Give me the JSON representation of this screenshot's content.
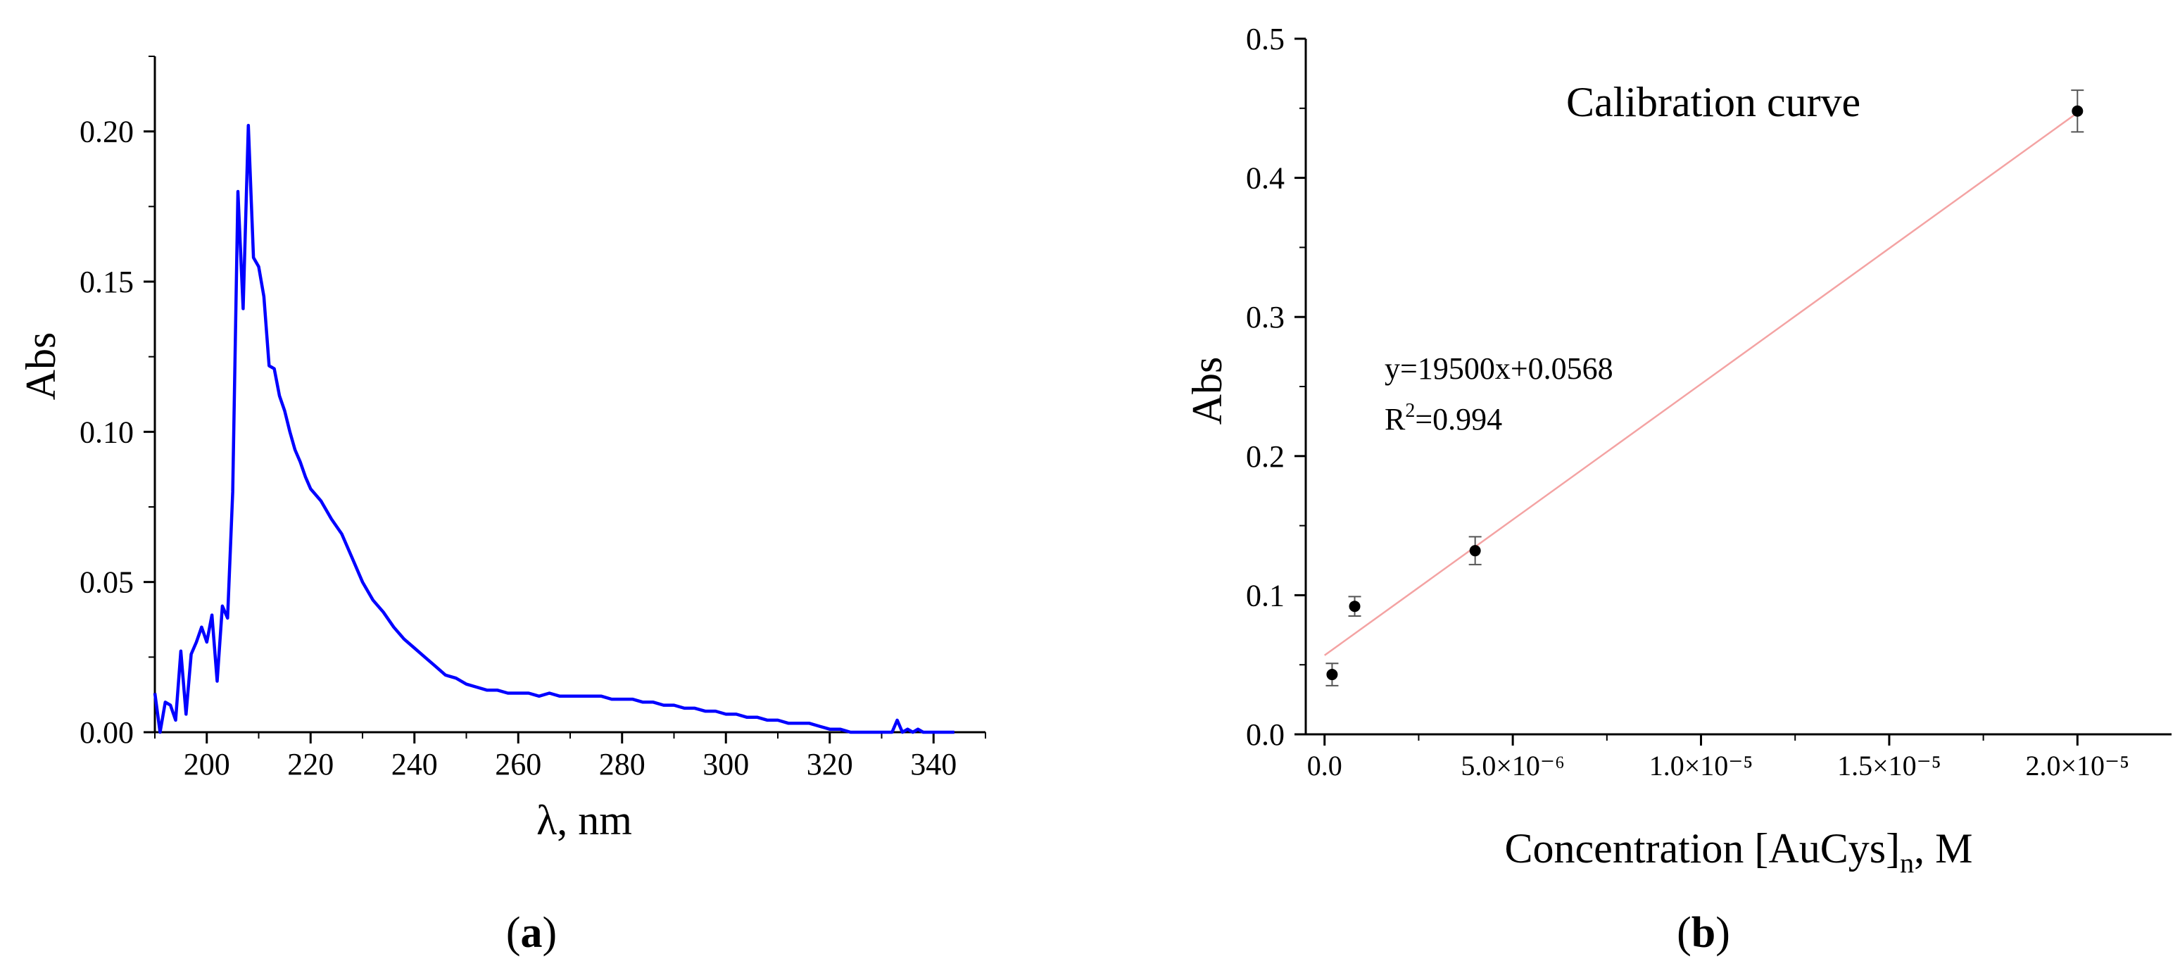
{
  "panels": [
    {
      "label_open": "(",
      "label_letter": "a",
      "label_close": ")"
    },
    {
      "label_open": "(",
      "label_letter": "b",
      "label_close": ")"
    }
  ],
  "chart_data": [
    {
      "type": "line",
      "title": "",
      "xlabel": "λ, nm",
      "ylabel": "Abs",
      "xlim": [
        190,
        350
      ],
      "ylim": [
        0,
        0.225
      ],
      "xticks": [
        200,
        220,
        240,
        260,
        280,
        300,
        320,
        340
      ],
      "xtick_labels": [
        "200",
        "220",
        "240",
        "260",
        "280",
        "300",
        "320",
        "340"
      ],
      "yticks": [
        0,
        0.05,
        0.1,
        0.15,
        0.2
      ],
      "ytick_labels": [
        "0.00",
        "0.05",
        "0.10",
        "0.15",
        "0.20"
      ],
      "grid": false,
      "series": [
        {
          "color": "#0000ff",
          "x": [
            190,
            191,
            192,
            193,
            194,
            195,
            196,
            197,
            198,
            199,
            200,
            201,
            202,
            203,
            204,
            205,
            206,
            207,
            208,
            209,
            210,
            211,
            212,
            213,
            214,
            215,
            216,
            217,
            218,
            219,
            220,
            222,
            224,
            226,
            228,
            230,
            232,
            234,
            236,
            238,
            240,
            242,
            244,
            246,
            248,
            250,
            252,
            254,
            256,
            258,
            260,
            262,
            264,
            266,
            268,
            270,
            272,
            274,
            276,
            278,
            280,
            282,
            284,
            286,
            288,
            290,
            292,
            294,
            296,
            298,
            300,
            302,
            304,
            306,
            308,
            310,
            312,
            314,
            316,
            318,
            320,
            322,
            324,
            326,
            328,
            330,
            332,
            333,
            334,
            335,
            336,
            337,
            338,
            340,
            342,
            344
          ],
          "y": [
            0.013,
            0.0,
            0.01,
            0.009,
            0.004,
            0.027,
            0.006,
            0.026,
            0.03,
            0.035,
            0.03,
            0.039,
            0.017,
            0.042,
            0.038,
            0.08,
            0.18,
            0.141,
            0.202,
            0.158,
            0.155,
            0.145,
            0.122,
            0.121,
            0.112,
            0.107,
            0.1,
            0.094,
            0.09,
            0.085,
            0.081,
            0.077,
            0.071,
            0.066,
            0.058,
            0.05,
            0.044,
            0.04,
            0.035,
            0.031,
            0.028,
            0.025,
            0.022,
            0.019,
            0.018,
            0.016,
            0.015,
            0.014,
            0.014,
            0.013,
            0.013,
            0.013,
            0.012,
            0.013,
            0.012,
            0.012,
            0.012,
            0.012,
            0.012,
            0.011,
            0.011,
            0.011,
            0.01,
            0.01,
            0.009,
            0.009,
            0.008,
            0.008,
            0.007,
            0.007,
            0.006,
            0.006,
            0.005,
            0.005,
            0.004,
            0.004,
            0.003,
            0.003,
            0.003,
            0.002,
            0.001,
            0.001,
            0.0,
            0.0,
            0.0,
            0.0,
            0.0,
            0.004,
            0.0,
            0.001,
            0.0,
            0.001,
            0.0,
            0.0,
            0.0,
            0.0
          ]
        }
      ]
    },
    {
      "type": "scatter",
      "title": "Calibration curve",
      "xlabel_main": "Concentration [AuCys]",
      "xlabel_sub": "n",
      "xlabel_tail": ", M",
      "ylabel": "Abs",
      "xlim": [
        -5e-07,
        2.25e-05
      ],
      "ylim": [
        0,
        0.5
      ],
      "xticks": [
        0,
        5e-06,
        1e-05,
        1.5e-05,
        2e-05
      ],
      "xtick_labels": [
        "0.0",
        "5.0×10⁻⁶",
        "1.0×10⁻⁵",
        "1.5×10⁻⁵",
        "2.0×10⁻⁵"
      ],
      "yticks": [
        0,
        0.1,
        0.2,
        0.3,
        0.4,
        0.5
      ],
      "ytick_labels": [
        "0.0",
        "0.1",
        "0.2",
        "0.3",
        "0.4",
        "0.5"
      ],
      "grid": false,
      "points": {
        "x": [
          2e-07,
          8e-07,
          4e-06,
          2e-05
        ],
        "y": [
          0.043,
          0.092,
          0.132,
          0.448
        ],
        "err": [
          0.008,
          0.007,
          0.01,
          0.015
        ],
        "color": "#000000"
      },
      "fit": {
        "slope": 19500,
        "intercept": 0.0568,
        "x_range": [
          0,
          2e-05
        ],
        "color": "#f4a3a3",
        "equation_label": "y=19500x+0.0568",
        "r2_prefix": "R",
        "r2_sup": "2",
        "r2_suffix": "=0.994"
      }
    }
  ]
}
